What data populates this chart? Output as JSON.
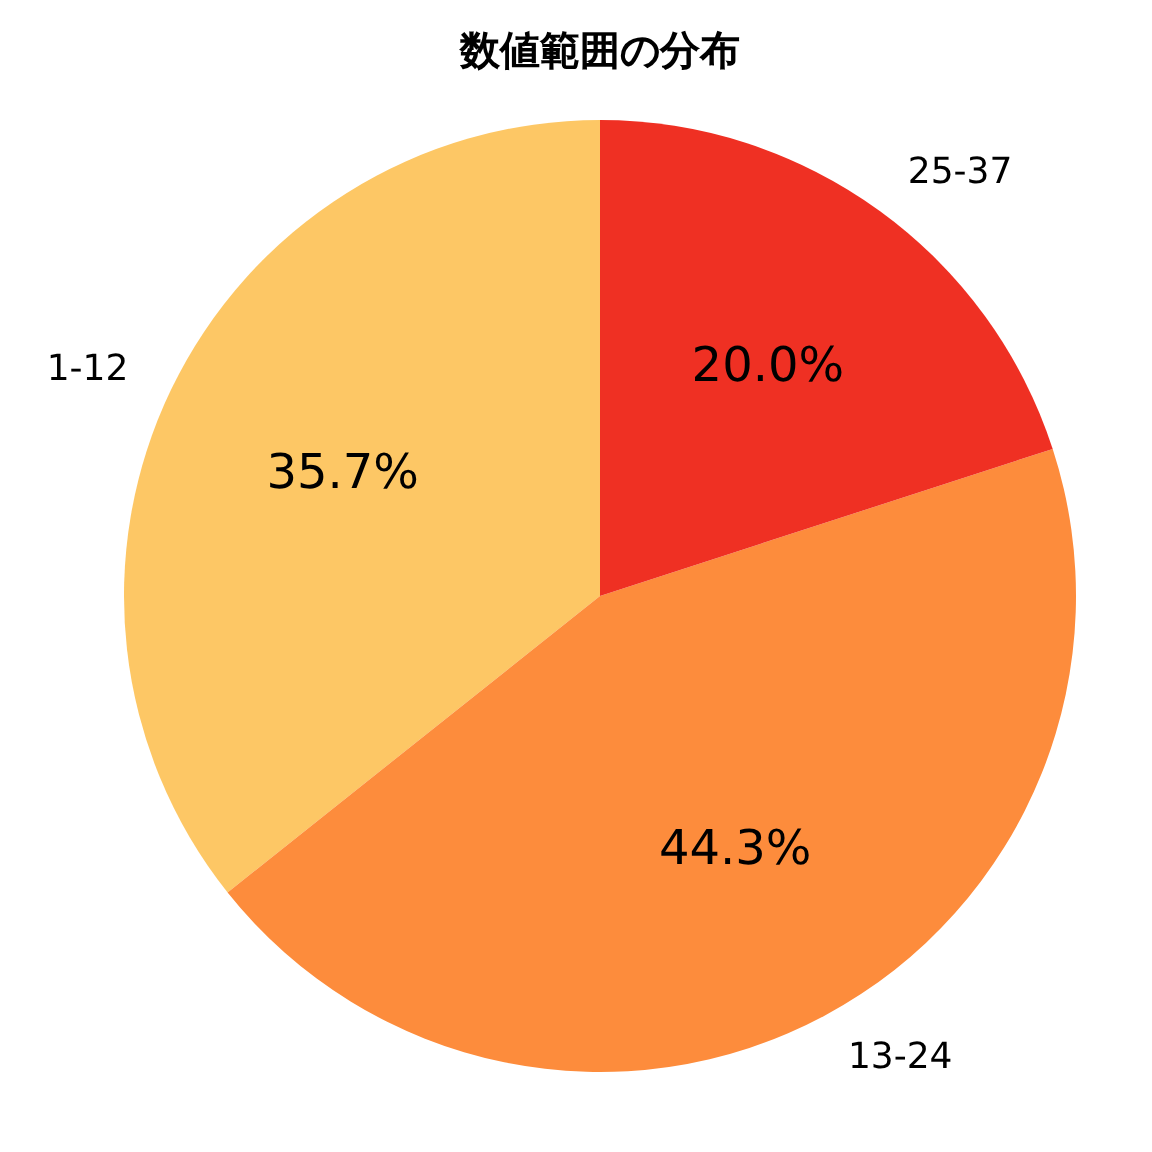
{
  "chart_data": {
    "type": "pie",
    "title": "数値範囲の分布",
    "categories": [
      "1-12",
      "13-24",
      "25-37"
    ],
    "values": [
      35.7,
      44.3,
      20.0
    ],
    "colors": [
      "#fdc765",
      "#fd8c3c",
      "#ef3023"
    ],
    "value_labels": [
      "35.7%",
      "44.3%",
      "20.0%"
    ]
  }
}
